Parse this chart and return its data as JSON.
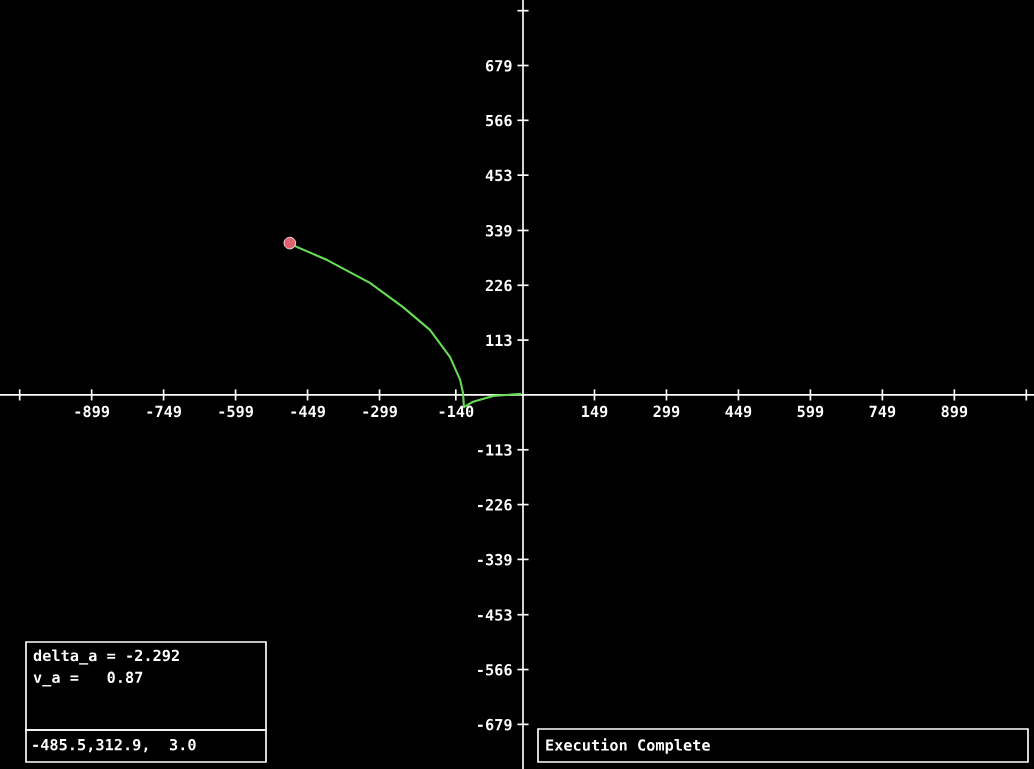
{
  "chart_data": {
    "type": "line",
    "xlim": [
      -1090,
      1065
    ],
    "ylim": [
      -771,
      814
    ],
    "xticks": [
      {
        "value": -1049,
        "label": null
      },
      -899,
      -749,
      -599,
      -449,
      -299,
      -140,
      149,
      299,
      449,
      599,
      749,
      899,
      {
        "value": 1049,
        "label": null
      }
    ],
    "yticks": [
      -679,
      -566,
      -453,
      -339,
      -226,
      -113,
      113,
      226,
      339,
      453,
      566,
      679,
      {
        "value": 792,
        "label": null
      }
    ],
    "series": [
      {
        "color": "#66dd55",
        "x": [
          -6,
          -62,
          -104,
          -123,
          -125,
          -131,
          -152,
          -194,
          -250,
          -319,
          -408,
          -490
        ],
        "values": [
          2,
          -2,
          -14,
          -25,
          4,
          31,
          78,
          134,
          181,
          231,
          278,
          313
        ]
      },
      {
        "type": "scatter",
        "color": "#e06070",
        "marker": "circle",
        "x": [
          -486
        ],
        "values": [
          313
        ]
      }
    ],
    "annotations": [
      "delta_a = -2.292",
      "v_a =   0.87",
      "-485.5,312.9,  3.0",
      "Execution Complete"
    ]
  }
}
